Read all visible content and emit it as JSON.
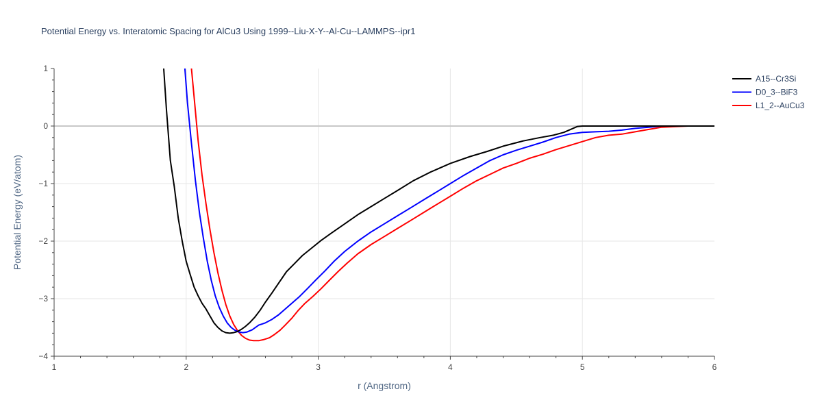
{
  "chart_data": {
    "type": "line",
    "title": "Potential Energy vs. Interatomic Spacing for AlCu3 Using 1999--Liu-X-Y--Al-Cu--LAMMPS--ipr1",
    "xlabel": "r (Angstrom)",
    "ylabel": "Potential Energy (eV/atom)",
    "xlim": [
      1,
      6
    ],
    "ylim": [
      -4,
      1
    ],
    "xticks": [
      "1",
      "2",
      "3",
      "4",
      "5",
      "6"
    ],
    "yticks": [
      "1",
      "0",
      "−1",
      "−2",
      "−3",
      "−4"
    ],
    "grid": true,
    "legend_position": "top-right",
    "series": [
      {
        "name": "A15--Cr3Si",
        "color": "#000000",
        "x": [
          1.83,
          1.85,
          1.88,
          1.91,
          1.94,
          1.97,
          2.0,
          2.03,
          2.06,
          2.09,
          2.12,
          2.15,
          2.18,
          2.21,
          2.24,
          2.27,
          2.3,
          2.33,
          2.36,
          2.39,
          2.42,
          2.45,
          2.48,
          2.52,
          2.56,
          2.6,
          2.65,
          2.7,
          2.76,
          2.82,
          2.88,
          2.95,
          3.02,
          3.1,
          3.2,
          3.3,
          3.4,
          3.5,
          3.6,
          3.72,
          3.85,
          4.0,
          4.15,
          4.28,
          4.4,
          4.55,
          4.68,
          4.78,
          4.86,
          4.92,
          4.96,
          5.0,
          5.1,
          5.2,
          5.3,
          5.4,
          5.5,
          5.6,
          5.8,
          6.0
        ],
        "y": [
          1.0,
          0.3,
          -0.6,
          -1.05,
          -1.6,
          -2.0,
          -2.35,
          -2.58,
          -2.8,
          -2.95,
          -3.08,
          -3.18,
          -3.3,
          -3.42,
          -3.5,
          -3.56,
          -3.59,
          -3.6,
          -3.59,
          -3.57,
          -3.53,
          -3.48,
          -3.42,
          -3.32,
          -3.2,
          -3.06,
          -2.9,
          -2.73,
          -2.53,
          -2.39,
          -2.25,
          -2.12,
          -1.99,
          -1.86,
          -1.7,
          -1.54,
          -1.4,
          -1.26,
          -1.12,
          -0.95,
          -0.8,
          -0.65,
          -0.53,
          -0.44,
          -0.35,
          -0.26,
          -0.2,
          -0.16,
          -0.11,
          -0.05,
          -0.01,
          0.0,
          0.0,
          0.0,
          0.0,
          0.0,
          0.0,
          0.0,
          0.0,
          0.0
        ]
      },
      {
        "name": "D0_3--BiF3",
        "color": "#0000ff",
        "x": [
          1.99,
          2.01,
          2.04,
          2.07,
          2.1,
          2.13,
          2.16,
          2.19,
          2.22,
          2.25,
          2.28,
          2.31,
          2.34,
          2.37,
          2.4,
          2.43,
          2.46,
          2.5,
          2.55,
          2.6,
          2.65,
          2.7,
          2.75,
          2.8,
          2.86,
          2.92,
          2.98,
          3.05,
          3.12,
          3.2,
          3.3,
          3.4,
          3.5,
          3.6,
          3.7,
          3.8,
          3.9,
          4.0,
          4.1,
          4.2,
          4.3,
          4.4,
          4.5,
          4.6,
          4.7,
          4.8,
          4.9,
          5.0,
          5.1,
          5.2,
          5.3,
          5.4,
          5.5,
          5.6,
          5.8,
          6.0
        ],
        "y": [
          1.0,
          0.4,
          -0.3,
          -0.95,
          -1.5,
          -1.95,
          -2.35,
          -2.68,
          -2.95,
          -3.15,
          -3.3,
          -3.42,
          -3.5,
          -3.55,
          -3.58,
          -3.59,
          -3.58,
          -3.54,
          -3.46,
          -3.42,
          -3.36,
          -3.28,
          -3.18,
          -3.08,
          -2.96,
          -2.82,
          -2.68,
          -2.52,
          -2.35,
          -2.18,
          -2.0,
          -1.84,
          -1.7,
          -1.56,
          -1.42,
          -1.28,
          -1.14,
          -1.0,
          -0.86,
          -0.73,
          -0.6,
          -0.5,
          -0.42,
          -0.35,
          -0.28,
          -0.2,
          -0.14,
          -0.11,
          -0.1,
          -0.09,
          -0.07,
          -0.04,
          -0.02,
          0.0,
          0.0,
          0.0
        ]
      },
      {
        "name": "L1_2--AuCu3",
        "color": "#ff0000",
        "x": [
          2.04,
          2.06,
          2.09,
          2.12,
          2.15,
          2.18,
          2.21,
          2.24,
          2.27,
          2.3,
          2.33,
          2.36,
          2.39,
          2.42,
          2.45,
          2.48,
          2.51,
          2.55,
          2.59,
          2.63,
          2.67,
          2.71,
          2.75,
          2.8,
          2.85,
          2.9,
          2.96,
          3.02,
          3.08,
          3.15,
          3.22,
          3.3,
          3.4,
          3.5,
          3.6,
          3.7,
          3.8,
          3.9,
          4.0,
          4.1,
          4.2,
          4.3,
          4.4,
          4.5,
          4.6,
          4.7,
          4.8,
          4.9,
          5.0,
          5.1,
          5.2,
          5.3,
          5.4,
          5.5,
          5.6,
          5.8,
          6.0
        ],
        "y": [
          1.0,
          0.5,
          -0.25,
          -0.85,
          -1.35,
          -1.8,
          -2.2,
          -2.55,
          -2.85,
          -3.1,
          -3.3,
          -3.45,
          -3.56,
          -3.64,
          -3.69,
          -3.72,
          -3.73,
          -3.73,
          -3.71,
          -3.68,
          -3.62,
          -3.55,
          -3.46,
          -3.34,
          -3.2,
          -3.08,
          -2.96,
          -2.83,
          -2.69,
          -2.53,
          -2.38,
          -2.22,
          -2.06,
          -1.92,
          -1.78,
          -1.64,
          -1.5,
          -1.36,
          -1.22,
          -1.08,
          -0.95,
          -0.84,
          -0.73,
          -0.65,
          -0.56,
          -0.49,
          -0.41,
          -0.34,
          -0.27,
          -0.2,
          -0.16,
          -0.14,
          -0.1,
          -0.06,
          -0.02,
          0.0,
          0.0
        ]
      }
    ]
  }
}
